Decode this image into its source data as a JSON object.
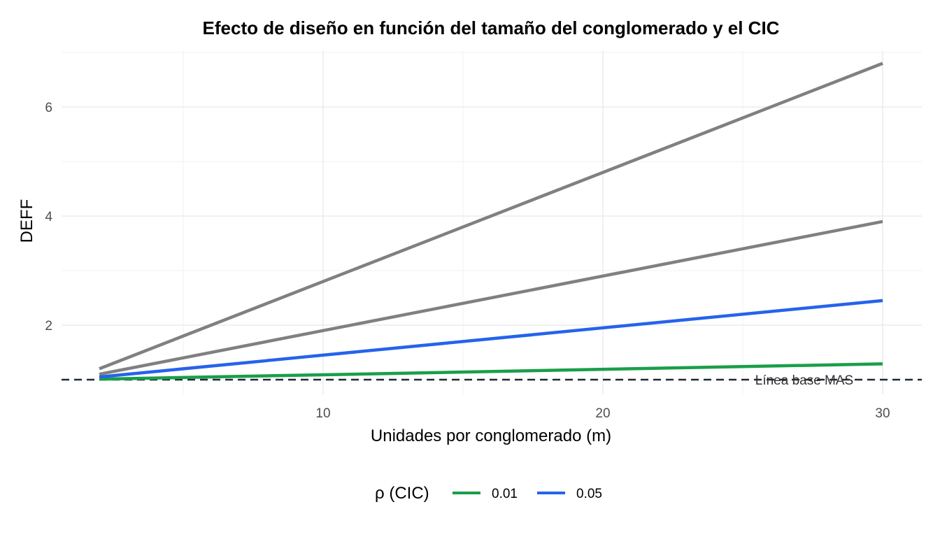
{
  "chart_data": {
    "type": "line",
    "title": "Efecto de diseño en función del tamaño del conglomerado y el CIC",
    "xlabel": "Unidades por conglomerado (m)",
    "ylabel": "DEFF",
    "xlim": [
      0.5,
      31.3
    ],
    "ylim": [
      0.7,
      7.0
    ],
    "x_ticks": [
      10,
      20,
      30
    ],
    "x_tick_labels": [
      "10",
      "20",
      "30"
    ],
    "y_ticks": [
      2,
      4,
      6
    ],
    "y_tick_labels": [
      "2",
      "4",
      "6"
    ],
    "grid": true,
    "legend_position": "bottom",
    "legend_title": "ρ (CIC)",
    "series": [
      {
        "name": "0.01",
        "color": "#1a9e4a",
        "x": [
          2,
          30
        ],
        "y": [
          1.01,
          1.29
        ]
      },
      {
        "name": "0.05",
        "color": "#2563eb",
        "x": [
          2,
          30
        ],
        "y": [
          1.05,
          2.45
        ]
      },
      {
        "color": "#808080",
        "x": [
          2,
          30
        ],
        "y": [
          1.1,
          3.9
        ]
      },
      {
        "color": "#808080",
        "x": [
          2,
          30
        ],
        "y": [
          1.2,
          6.8
        ]
      }
    ],
    "reference_line": {
      "y": 1,
      "style": "dashed",
      "color": "#1f2937"
    },
    "annotation": {
      "text": "Línea base MAS",
      "x": 27.2,
      "y": 1
    }
  }
}
